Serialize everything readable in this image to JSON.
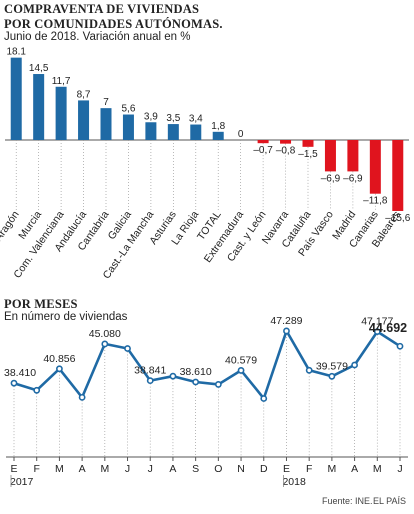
{
  "header": {
    "title_line1": "COMPRAVENTA DE VIVIENDAS",
    "title_line2": "POR COMUNIDADES AUTÓNOMAS.",
    "subtitle": "Junio de 2018. Variación anual en %"
  },
  "section2": {
    "title": "POR MESES",
    "subtitle": "En número de viviendas"
  },
  "footer": {
    "source": "Fuente: INE.",
    "credit": "EL PAÍS"
  },
  "colors": {
    "positive": "#1f6aa5",
    "negative": "#e0141e",
    "line": "#1f6aa5",
    "axis": "#555555"
  },
  "chart_data": [
    {
      "type": "bar",
      "categories": [
        "Aragón",
        "Murcia",
        "Com. Valenciana",
        "Andalucía",
        "Cantabria",
        "Galicia",
        "Cast.-La Mancha",
        "Asturias",
        "La Rioja",
        "TOTAL",
        "Extremadura",
        "Cast. y León",
        "Navarra",
        "Cataluña",
        "País Vasco",
        "Madrid",
        "Canarias",
        "Baleares"
      ],
      "values": [
        18.1,
        14.5,
        11.7,
        8.7,
        7,
        5.6,
        3.9,
        3.5,
        3.4,
        1.8,
        0,
        -0.7,
        -0.8,
        -1.5,
        -6.9,
        -6.9,
        -11.8,
        -15.6
      ],
      "value_labels": [
        "18.1",
        "14,5",
        "11,7",
        "8,7",
        "7",
        "5,6",
        "3,9",
        "3,5",
        "3,4",
        "1,8",
        "0",
        "–0,7",
        "–0,8",
        "–1,5",
        "–6,9",
        "–6,9",
        "–11,8",
        "–15,6"
      ],
      "ylim": [
        -16,
        19
      ]
    },
    {
      "type": "line",
      "x_labels": [
        "E",
        "F",
        "M",
        "A",
        "M",
        "J",
        "J",
        "A",
        "S",
        "O",
        "N",
        "D",
        "E",
        "F",
        "M",
        "A",
        "M",
        "J"
      ],
      "years": [
        {
          "label": "2017",
          "index": 0
        },
        {
          "label": "2018",
          "index": 12
        }
      ],
      "values": [
        38410,
        37200,
        40856,
        36000,
        45080,
        44300,
        38841,
        39600,
        38610,
        38200,
        40579,
        35800,
        47289,
        40600,
        39579,
        41500,
        47177,
        44692
      ],
      "value_labels": [
        {
          "index": 0,
          "text": "38.410"
        },
        {
          "index": 2,
          "text": "40.856"
        },
        {
          "index": 4,
          "text": "45.080"
        },
        {
          "index": 6,
          "text": "38.841"
        },
        {
          "index": 8,
          "text": "38.610"
        },
        {
          "index": 10,
          "text": "40.579"
        },
        {
          "index": 12,
          "text": "47.289"
        },
        {
          "index": 14,
          "text": "39.579"
        },
        {
          "index": 16,
          "text": "47.177"
        },
        {
          "index": 17,
          "text": "44.692",
          "bold": true
        }
      ],
      "ylim": [
        33000,
        50000
      ]
    }
  ]
}
